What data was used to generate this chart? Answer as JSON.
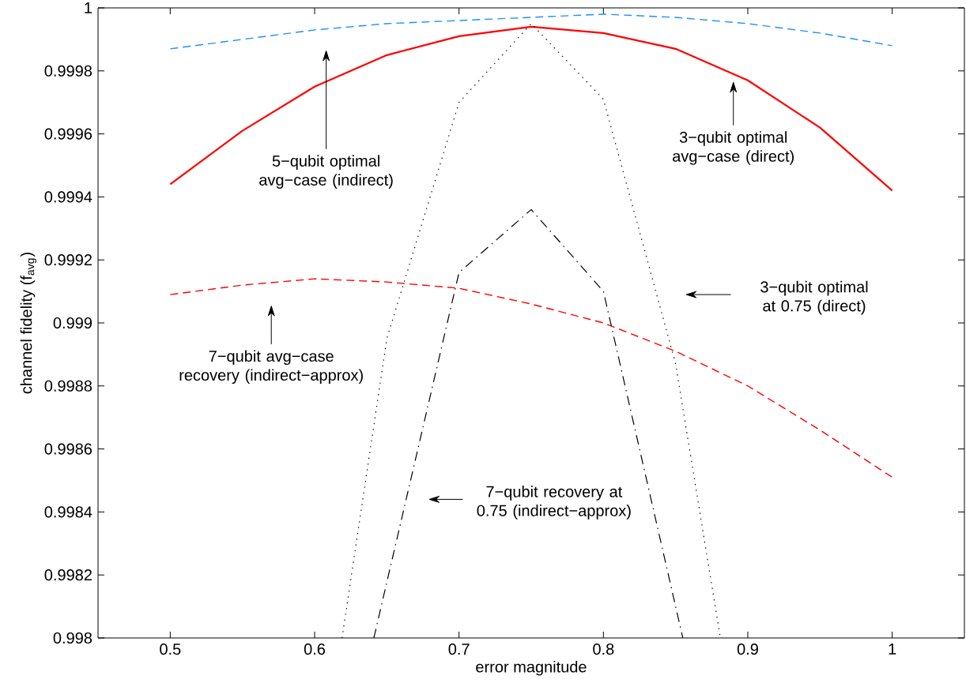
{
  "chart_data": {
    "type": "line",
    "xlabel": "error magnitude",
    "ylabel": "channel fidelity (f$_{avg}$)",
    "xlim": [
      0.45,
      1.05
    ],
    "ylim": [
      0.998,
      1
    ],
    "xticks": [
      0.5,
      0.6,
      0.7,
      0.8,
      0.9,
      1
    ],
    "yticks": [
      0.998,
      0.9982,
      0.9984,
      0.9986,
      0.9988,
      0.999,
      0.9992,
      0.9994,
      0.9996,
      0.9998,
      1
    ],
    "series": [
      {
        "color": "#1e90ff",
        "line_style": "dashed",
        "x": [
          0.5,
          0.55,
          0.6,
          0.65,
          0.7,
          0.75,
          0.8,
          0.85,
          0.9,
          0.95,
          1.0
        ],
        "values": [
          0.99987,
          0.9999,
          0.99993,
          0.99995,
          0.99996,
          0.99997,
          0.99998,
          0.99997,
          0.99995,
          0.99992,
          0.99988
        ]
      },
      {
        "color": "#ff0000",
        "line_style": "solid",
        "x": [
          0.5,
          0.55,
          0.6,
          0.65,
          0.7,
          0.75,
          0.8,
          0.85,
          0.9,
          0.95,
          1.0
        ],
        "values": [
          0.99944,
          0.99961,
          0.99975,
          0.99985,
          0.99991,
          0.99994,
          0.99992,
          0.99987,
          0.99977,
          0.99962,
          0.99942
        ]
      },
      {
        "color": "#ff0000",
        "line_style": "dashed",
        "x": [
          0.5,
          0.55,
          0.6,
          0.65,
          0.7,
          0.75,
          0.8,
          0.85,
          0.9,
          0.95,
          1.0
        ],
        "values": [
          0.99909,
          0.99912,
          0.99914,
          0.99913,
          0.99911,
          0.99906,
          0.999,
          0.99891,
          0.9988,
          0.99866,
          0.99851
        ]
      },
      {
        "color": "#000000",
        "line_style": "dotted",
        "x": [
          0.619,
          0.65,
          0.7,
          0.75,
          0.8,
          0.85,
          0.881
        ],
        "values": [
          0.998,
          0.99895,
          0.9997,
          0.99995,
          0.99971,
          0.99887,
          0.998
        ]
      },
      {
        "color": "#000000",
        "line_style": "dashdot",
        "x": [
          0.641,
          0.7,
          0.75,
          0.8,
          0.855
        ],
        "values": [
          0.998,
          0.99916,
          0.99936,
          0.9991,
          0.998
        ]
      }
    ],
    "annotations": [
      "5−qubit optimal avg−case (indirect)",
      "3−qubit optimal avg−case (direct)",
      "7−qubit avg−case recovery (indirect−approx)",
      "3−qubit optimal at 0.75 (direct)",
      "7−qubit recovery at 0.75 (indirect−approx)"
    ]
  }
}
